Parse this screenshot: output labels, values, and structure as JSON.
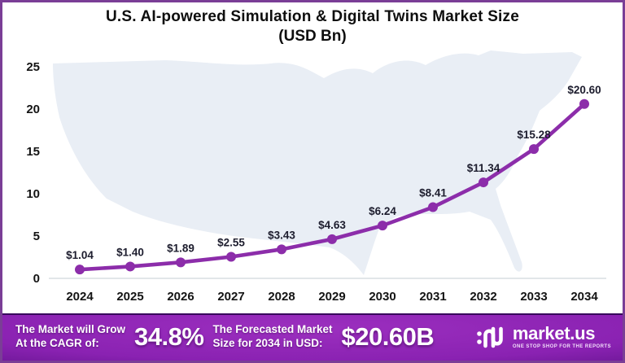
{
  "title": {
    "line1": "U.S. AI-powered Simulation & Digital Twins Market Size",
    "line2": "(USD Bn)"
  },
  "chart_data": {
    "type": "line",
    "title": "U.S. AI-powered Simulation & Digital Twins Market Size (USD Bn)",
    "x": [
      2024,
      2025,
      2026,
      2027,
      2028,
      2029,
      2030,
      2031,
      2032,
      2033,
      2034
    ],
    "values": [
      1.04,
      1.4,
      1.89,
      2.55,
      3.43,
      4.63,
      6.24,
      8.41,
      11.34,
      15.28,
      20.6
    ],
    "point_labels": [
      "$1.04",
      "$1.40",
      "$1.89",
      "$2.55",
      "$3.43",
      "$4.63",
      "$6.24",
      "$8.41",
      "$11.34",
      "$15.28",
      "$20.60"
    ],
    "yticks": [
      0,
      5,
      10,
      15,
      20,
      25
    ],
    "ylim": [
      0,
      25
    ],
    "xlabel": "",
    "ylabel": "",
    "grid": false,
    "legend": "none",
    "line_color": "#8c2daa",
    "marker": "circle",
    "background": "light-blue USA map silhouette"
  },
  "footer": {
    "cagr_label_line1": "The Market will Grow",
    "cagr_label_line2": "At the CAGR of:",
    "cagr_value": "34.8%",
    "forecast_label_line1": "The Forecasted Market",
    "forecast_label_line2": "Size for 2034 in USD:",
    "forecast_value": "$20.60B",
    "brand": {
      "name": "market.us",
      "tagline": "ONE STOP SHOP FOR THE REPORTS"
    }
  },
  "colors": {
    "accent_purple": "#8c2daa",
    "map_fill": "#e9eef5",
    "border_purple": "#7a3e96",
    "footer_mid": "#9c2fbf",
    "footer_dark": "#41085f",
    "axis_line": "#d9dde2",
    "text_dark": "#141414"
  }
}
